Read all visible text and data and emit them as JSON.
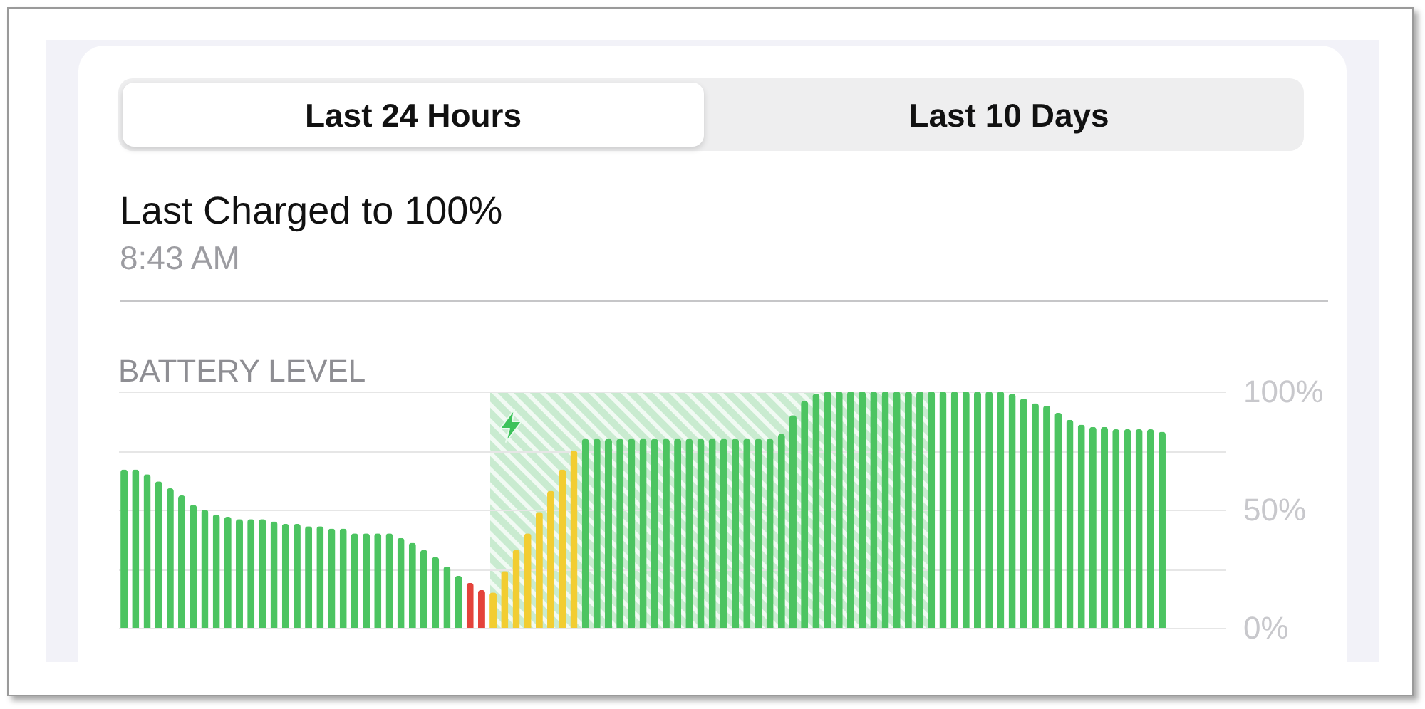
{
  "chart_data": {
    "type": "bar",
    "title": "BATTERY LEVEL",
    "annotations": [
      "Last 24 Hours",
      "Last 10 Days",
      "Last Charged to 100%",
      "8:43 AM"
    ],
    "categories": [
      null,
      null,
      null,
      null,
      null,
      null,
      null,
      null,
      null,
      null,
      null,
      null,
      null,
      null,
      null,
      null,
      null,
      null,
      null,
      null,
      null,
      null,
      null,
      null,
      null,
      null,
      null,
      null,
      null,
      null,
      null,
      null,
      null,
      null,
      null,
      null,
      null,
      null,
      null,
      null,
      null,
      null,
      null,
      null,
      null,
      null,
      null,
      null,
      null,
      null,
      null,
      null,
      null,
      null,
      null,
      null,
      null,
      null,
      null,
      null,
      null,
      null,
      null,
      null,
      null,
      null,
      null,
      null,
      null,
      null,
      null,
      null,
      null,
      null,
      null,
      null,
      null,
      null,
      null,
      null,
      null,
      null,
      null,
      null,
      null,
      null,
      null,
      null,
      null,
      null,
      null,
      null,
      null,
      null,
      null,
      null
    ],
    "values": [
      67,
      67,
      65,
      62,
      59,
      56,
      52,
      50,
      48,
      47,
      46,
      46,
      46,
      45,
      44,
      44,
      43,
      43,
      42,
      42,
      40,
      40,
      40,
      40,
      38,
      36,
      33,
      30,
      26,
      22,
      19,
      16,
      15,
      24,
      33,
      40,
      49,
      58,
      67,
      75,
      80,
      80,
      80,
      80,
      80,
      80,
      80,
      80,
      80,
      80,
      80,
      80,
      80,
      80,
      80,
      80,
      80,
      82,
      90,
      96,
      99,
      100,
      100,
      100,
      100,
      100,
      100,
      100,
      100,
      100,
      100,
      100,
      100,
      100,
      100,
      100,
      100,
      99,
      97,
      95,
      94,
      91,
      88,
      86,
      85,
      85,
      84,
      84,
      84,
      84,
      83,
      null,
      null,
      null,
      null,
      null
    ],
    "colors": [
      "#4cc461",
      "#4cc461",
      "#4cc461",
      "#4cc461",
      "#4cc461",
      "#4cc461",
      "#4cc461",
      "#4cc461",
      "#4cc461",
      "#4cc461",
      "#4cc461",
      "#4cc461",
      "#4cc461",
      "#4cc461",
      "#4cc461",
      "#4cc461",
      "#4cc461",
      "#4cc461",
      "#4cc461",
      "#4cc461",
      "#4cc461",
      "#4cc461",
      "#4cc461",
      "#4cc461",
      "#4cc461",
      "#4cc461",
      "#4cc461",
      "#4cc461",
      "#4cc461",
      "#4cc461",
      "#e4433b",
      "#e4433b",
      "#f2cd32",
      "#f2cd32",
      "#f2cd32",
      "#f2cd32",
      "#f2cd32",
      "#f2cd32",
      "#f2cd32",
      "#f2cd32",
      "#4cc461",
      "#4cc461",
      "#4cc461",
      "#4cc461",
      "#4cc461",
      "#4cc461",
      "#4cc461",
      "#4cc461",
      "#4cc461",
      "#4cc461",
      "#4cc461",
      "#4cc461",
      "#4cc461",
      "#4cc461",
      "#4cc461",
      "#4cc461",
      "#4cc461",
      "#4cc461",
      "#4cc461",
      "#4cc461",
      "#4cc461",
      "#4cc461",
      "#4cc461",
      "#4cc461",
      "#4cc461",
      "#4cc461",
      "#4cc461",
      "#4cc461",
      "#4cc461",
      "#4cc461",
      "#4cc461",
      "#4cc461",
      "#4cc461",
      "#4cc461",
      "#4cc461",
      "#4cc461",
      "#4cc461",
      "#4cc461",
      "#4cc461",
      "#4cc461",
      "#4cc461",
      "#4cc461",
      "#4cc461",
      "#4cc461",
      "#4cc461",
      "#4cc461",
      "#4cc461",
      "#4cc461",
      "#4cc461",
      "#4cc461",
      "#4cc461",
      null,
      null,
      null,
      null,
      null
    ],
    "ylim": [
      0,
      100
    ],
    "yticks": [
      {
        "value": 0,
        "label": "0%"
      },
      {
        "value": 25,
        "label": null
      },
      {
        "value": 50,
        "label": "50%"
      },
      {
        "value": 75,
        "label": null
      },
      {
        "value": 100,
        "label": "100%"
      }
    ],
    "grid": "y"
  }
}
